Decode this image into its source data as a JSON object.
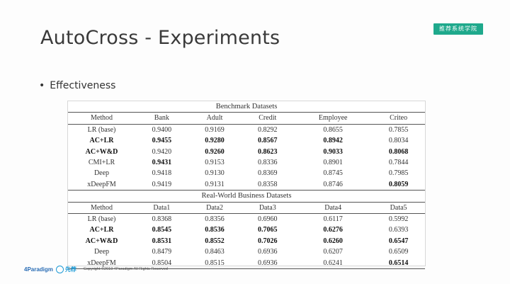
{
  "title": "AutoCross - Experiments",
  "badge": "推荐系统学院",
  "bullet": "Effectiveness",
  "table1": {
    "caption": "Benchmark Datasets",
    "headers": [
      "Method",
      "Bank",
      "Adult",
      "Credit",
      "Employee",
      "Criteo"
    ],
    "rows": [
      {
        "method": "LR (base)",
        "bold_method": false,
        "cells": [
          {
            "v": "0.9400",
            "b": false
          },
          {
            "v": "0.9169",
            "b": false
          },
          {
            "v": "0.8292",
            "b": false
          },
          {
            "v": "0.8655",
            "b": false
          },
          {
            "v": "0.7855",
            "b": false
          }
        ]
      },
      {
        "method": "AC+LR",
        "bold_method": true,
        "cells": [
          {
            "v": "0.9455",
            "b": true
          },
          {
            "v": "0.9280",
            "b": true
          },
          {
            "v": "0.8567",
            "b": true
          },
          {
            "v": "0.8942",
            "b": true
          },
          {
            "v": "0.8034",
            "b": false
          }
        ]
      },
      {
        "method": "AC+W&D",
        "bold_method": true,
        "cells": [
          {
            "v": "0.9420",
            "b": false
          },
          {
            "v": "0.9260",
            "b": true
          },
          {
            "v": "0.8623",
            "b": true
          },
          {
            "v": "0.9033",
            "b": true
          },
          {
            "v": "0.8068",
            "b": true
          }
        ]
      },
      {
        "method": "CMI+LR",
        "bold_method": false,
        "cells": [
          {
            "v": "0.9431",
            "b": true
          },
          {
            "v": "0.9153",
            "b": false
          },
          {
            "v": "0.8336",
            "b": false
          },
          {
            "v": "0.8901",
            "b": false
          },
          {
            "v": "0.7844",
            "b": false
          }
        ]
      },
      {
        "method": "Deep",
        "bold_method": false,
        "cells": [
          {
            "v": "0.9418",
            "b": false
          },
          {
            "v": "0.9130",
            "b": false
          },
          {
            "v": "0.8369",
            "b": false
          },
          {
            "v": "0.8745",
            "b": false
          },
          {
            "v": "0.7985",
            "b": false
          }
        ]
      },
      {
        "method": "xDeepFM",
        "bold_method": false,
        "cells": [
          {
            "v": "0.9419",
            "b": false
          },
          {
            "v": "0.9131",
            "b": false
          },
          {
            "v": "0.8358",
            "b": false
          },
          {
            "v": "0.8746",
            "b": false
          },
          {
            "v": "0.8059",
            "b": true
          }
        ]
      }
    ]
  },
  "table2": {
    "caption": "Real-World Business Datasets",
    "headers": [
      "Method",
      "Data1",
      "Data2",
      "Data3",
      "Data4",
      "Data5"
    ],
    "rows": [
      {
        "method": "LR (base)",
        "bold_method": false,
        "cells": [
          {
            "v": "0.8368",
            "b": false
          },
          {
            "v": "0.8356",
            "b": false
          },
          {
            "v": "0.6960",
            "b": false
          },
          {
            "v": "0.6117",
            "b": false
          },
          {
            "v": "0.5992",
            "b": false
          }
        ]
      },
      {
        "method": "AC+LR",
        "bold_method": true,
        "cells": [
          {
            "v": "0.8545",
            "b": true
          },
          {
            "v": "0.8536",
            "b": true
          },
          {
            "v": "0.7065",
            "b": true
          },
          {
            "v": "0.6276",
            "b": true
          },
          {
            "v": "0.6393",
            "b": false
          }
        ]
      },
      {
        "method": "AC+W&D",
        "bold_method": true,
        "cells": [
          {
            "v": "0.8531",
            "b": true
          },
          {
            "v": "0.8552",
            "b": true
          },
          {
            "v": "0.7026",
            "b": true
          },
          {
            "v": "0.6260",
            "b": true
          },
          {
            "v": "0.6547",
            "b": true
          }
        ]
      },
      {
        "method": "Deep",
        "bold_method": false,
        "cells": [
          {
            "v": "0.8479",
            "b": false
          },
          {
            "v": "0.8463",
            "b": false
          },
          {
            "v": "0.6936",
            "b": false
          },
          {
            "v": "0.6207",
            "b": false
          },
          {
            "v": "0.6509",
            "b": false
          }
        ]
      },
      {
        "method": "xDeepFM",
        "bold_method": false,
        "cells": [
          {
            "v": "0.8504",
            "b": false
          },
          {
            "v": "0.8515",
            "b": false
          },
          {
            "v": "0.6936",
            "b": false
          },
          {
            "v": "0.6241",
            "b": false
          },
          {
            "v": "0.6514",
            "b": true
          }
        ]
      }
    ]
  },
  "footer": {
    "logo1": "4Paradigm",
    "logo2": "先荐",
    "copyright": "Copyright ©2019 4Paradigm All Rights Reserved"
  }
}
